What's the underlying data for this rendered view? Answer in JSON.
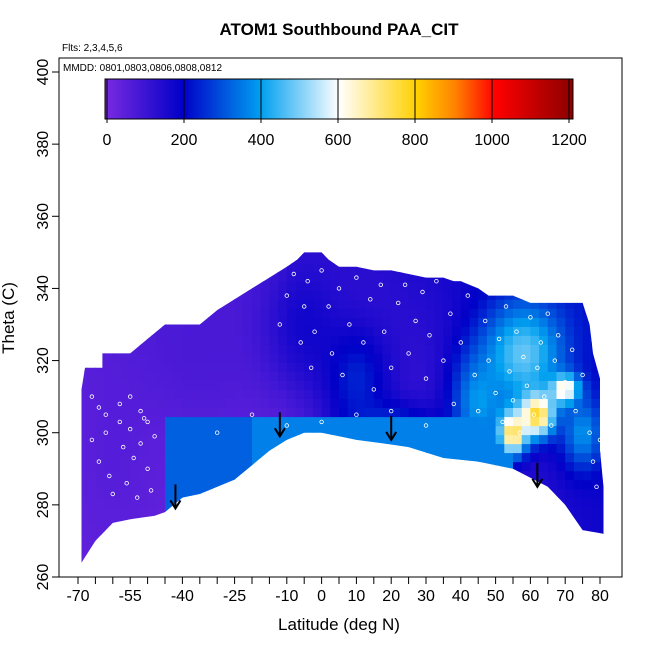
{
  "chart_data": {
    "type": "heatmap",
    "title": "ATOM1 Southbound PAA_CIT",
    "flights_note": "Flts: 2,3,4,5,6",
    "mmdd_note": "MMDD: 0801,0803,0806,0808,0812",
    "xlabel": "Latitude (deg N)",
    "ylabel": "Theta (C)",
    "xlim": [
      -70,
      85
    ],
    "ylim": [
      260,
      405
    ],
    "x_ticks": [
      -70,
      -55,
      -40,
      -25,
      -10,
      0,
      10,
      20,
      30,
      40,
      50,
      60,
      70,
      80
    ],
    "x_tick_labels": [
      "-70",
      "-55",
      "-40",
      "-25",
      "-10",
      "0",
      "10",
      "20",
      "30",
      "40",
      "50",
      "60",
      "70",
      "80"
    ],
    "x_minor_ticks": [
      -65,
      -60,
      -50,
      -45,
      -35,
      -30,
      -20,
      -15,
      -5,
      5,
      15,
      25,
      35,
      45,
      55,
      65,
      75
    ],
    "y_ticks": [
      260,
      280,
      300,
      320,
      340,
      360,
      380,
      400
    ],
    "y_tick_labels": [
      "260",
      "280",
      "300",
      "320",
      "340",
      "360",
      "380",
      "400"
    ],
    "colorbar": {
      "min": 0,
      "max": 1200,
      "ticks": [
        0,
        200,
        400,
        600,
        800,
        1000,
        1200
      ],
      "tick_labels": [
        "0",
        "200",
        "400",
        "600",
        "800",
        "1000",
        "1200"
      ],
      "colors": [
        "#7a2ae0",
        "#0000c8",
        "#00a0f0",
        "#ffffff",
        "#ffd000",
        "#ff8000",
        "#ff0000",
        "#8b0000"
      ],
      "stops": [
        0,
        200,
        400,
        600,
        800,
        900,
        1000,
        1200
      ]
    },
    "field_blobs": [
      {
        "lat": -60,
        "theta": 295,
        "value": 60,
        "width": 12,
        "height": 30
      },
      {
        "lat": -35,
        "theta": 325,
        "value": 80,
        "width": 20,
        "height": 25
      },
      {
        "lat": -5,
        "theta": 330,
        "value": 170,
        "width": 12,
        "height": 20
      },
      {
        "lat": 10,
        "theta": 315,
        "value": 240,
        "width": 10,
        "height": 15
      },
      {
        "lat": 20,
        "theta": 300,
        "value": 300,
        "width": 14,
        "height": 8
      },
      {
        "lat": 45,
        "theta": 308,
        "value": 380,
        "width": 8,
        "height": 15
      },
      {
        "lat": 58,
        "theta": 322,
        "value": 480,
        "width": 12,
        "height": 15
      },
      {
        "lat": 55,
        "theta": 300,
        "value": 760,
        "width": 4,
        "height": 6
      },
      {
        "lat": 62,
        "theta": 305,
        "value": 780,
        "width": 5,
        "height": 6
      },
      {
        "lat": 70,
        "theta": 312,
        "value": 700,
        "width": 4,
        "height": 4
      },
      {
        "lat": 75,
        "theta": 300,
        "value": 380,
        "width": 6,
        "height": 10
      }
    ],
    "domain_boundary": {
      "top": [
        [
          -69,
          312
        ],
        [
          -68,
          318
        ],
        [
          -63,
          318
        ],
        [
          -63,
          322
        ],
        [
          -55,
          322
        ],
        [
          -50,
          326
        ],
        [
          -45,
          330
        ],
        [
          -35,
          330
        ],
        [
          -30,
          334
        ],
        [
          -25,
          337
        ],
        [
          -20,
          340
        ],
        [
          -15,
          343
        ],
        [
          -10,
          346
        ],
        [
          -7,
          348
        ],
        [
          -5,
          350
        ],
        [
          0,
          350
        ],
        [
          2,
          348
        ],
        [
          5,
          346
        ],
        [
          10,
          346
        ],
        [
          15,
          345
        ],
        [
          20,
          345
        ],
        [
          25,
          344
        ],
        [
          30,
          343
        ],
        [
          35,
          343
        ],
        [
          38,
          342
        ],
        [
          40,
          342
        ],
        [
          45,
          340
        ],
        [
          48,
          338
        ],
        [
          55,
          338
        ],
        [
          60,
          336
        ],
        [
          65,
          336
        ],
        [
          70,
          336
        ],
        [
          75,
          336
        ],
        [
          77,
          330
        ],
        [
          78,
          322
        ],
        [
          80,
          315
        ],
        [
          80,
          295
        ],
        [
          81,
          285
        ],
        [
          81,
          272
        ]
      ],
      "bottom": [
        [
          81,
          272
        ],
        [
          75,
          273
        ],
        [
          70,
          280
        ],
        [
          65,
          285
        ],
        [
          55,
          290
        ],
        [
          45,
          292
        ],
        [
          35,
          293
        ],
        [
          25,
          296
        ],
        [
          18,
          297
        ],
        [
          10,
          298
        ],
        [
          5,
          299
        ],
        [
          0,
          300
        ],
        [
          -5,
          300
        ],
        [
          -10,
          298
        ],
        [
          -15,
          295
        ],
        [
          -20,
          291
        ],
        [
          -25,
          287
        ],
        [
          -35,
          283
        ],
        [
          -40,
          282
        ],
        [
          -45,
          278
        ],
        [
          -48,
          277
        ],
        [
          -55,
          276
        ],
        [
          -60,
          275
        ],
        [
          -65,
          270
        ],
        [
          -69,
          264
        ]
      ]
    },
    "arrows": [
      {
        "lat": -42,
        "theta": 279
      },
      {
        "lat": -12,
        "theta": 299
      },
      {
        "lat": 20,
        "theta": 298
      },
      {
        "lat": 62,
        "theta": 285
      }
    ],
    "observation_points": [
      [
        -66,
        298
      ],
      [
        -64,
        292
      ],
      [
        -62,
        300
      ],
      [
        -61,
        288
      ],
      [
        -60,
        283
      ],
      [
        -58,
        303
      ],
      [
        -57,
        296
      ],
      [
        -56,
        286
      ],
      [
        -55,
        301
      ],
      [
        -54,
        293
      ],
      [
        -53,
        282
      ],
      [
        -52,
        297
      ],
      [
        -51,
        304
      ],
      [
        -50,
        290
      ],
      [
        -49,
        284
      ],
      [
        -48,
        299
      ],
      [
        -66,
        310
      ],
      [
        -64,
        307
      ],
      [
        -62,
        305
      ],
      [
        -58,
        308
      ],
      [
        -55,
        310
      ],
      [
        -52,
        306
      ],
      [
        -50,
        303
      ],
      [
        -12,
        330
      ],
      [
        -10,
        338
      ],
      [
        -8,
        344
      ],
      [
        -6,
        325
      ],
      [
        -5,
        335
      ],
      [
        -4,
        342
      ],
      [
        -3,
        318
      ],
      [
        -2,
        328
      ],
      [
        0,
        345
      ],
      [
        2,
        335
      ],
      [
        3,
        322
      ],
      [
        5,
        340
      ],
      [
        6,
        316
      ],
      [
        8,
        330
      ],
      [
        10,
        343
      ],
      [
        12,
        325
      ],
      [
        14,
        337
      ],
      [
        15,
        312
      ],
      [
        17,
        341
      ],
      [
        18,
        328
      ],
      [
        20,
        318
      ],
      [
        22,
        336
      ],
      [
        24,
        341
      ],
      [
        25,
        322
      ],
      [
        27,
        331
      ],
      [
        29,
        339
      ],
      [
        30,
        315
      ],
      [
        31,
        327
      ],
      [
        33,
        342
      ],
      [
        35,
        320
      ],
      [
        37,
        333
      ],
      [
        38,
        308
      ],
      [
        40,
        325
      ],
      [
        42,
        338
      ],
      [
        44,
        316
      ],
      [
        45,
        306
      ],
      [
        47,
        331
      ],
      [
        48,
        320
      ],
      [
        50,
        311
      ],
      [
        51,
        326
      ],
      [
        52,
        303
      ],
      [
        53,
        335
      ],
      [
        54,
        317
      ],
      [
        55,
        309
      ],
      [
        56,
        328
      ],
      [
        57,
        300
      ],
      [
        58,
        321
      ],
      [
        59,
        313
      ],
      [
        60,
        332
      ],
      [
        61,
        305
      ],
      [
        62,
        318
      ],
      [
        63,
        325
      ],
      [
        64,
        310
      ],
      [
        65,
        333
      ],
      [
        66,
        302
      ],
      [
        67,
        320
      ],
      [
        68,
        327
      ],
      [
        70,
        314
      ],
      [
        72,
        323
      ],
      [
        73,
        306
      ],
      [
        75,
        316
      ],
      [
        77,
        300
      ],
      [
        78,
        292
      ],
      [
        79,
        285
      ],
      [
        80,
        298
      ],
      [
        -30,
        300
      ],
      [
        -20,
        305
      ],
      [
        -10,
        302
      ],
      [
        0,
        303
      ],
      [
        10,
        305
      ],
      [
        20,
        306
      ],
      [
        30,
        302
      ]
    ]
  }
}
